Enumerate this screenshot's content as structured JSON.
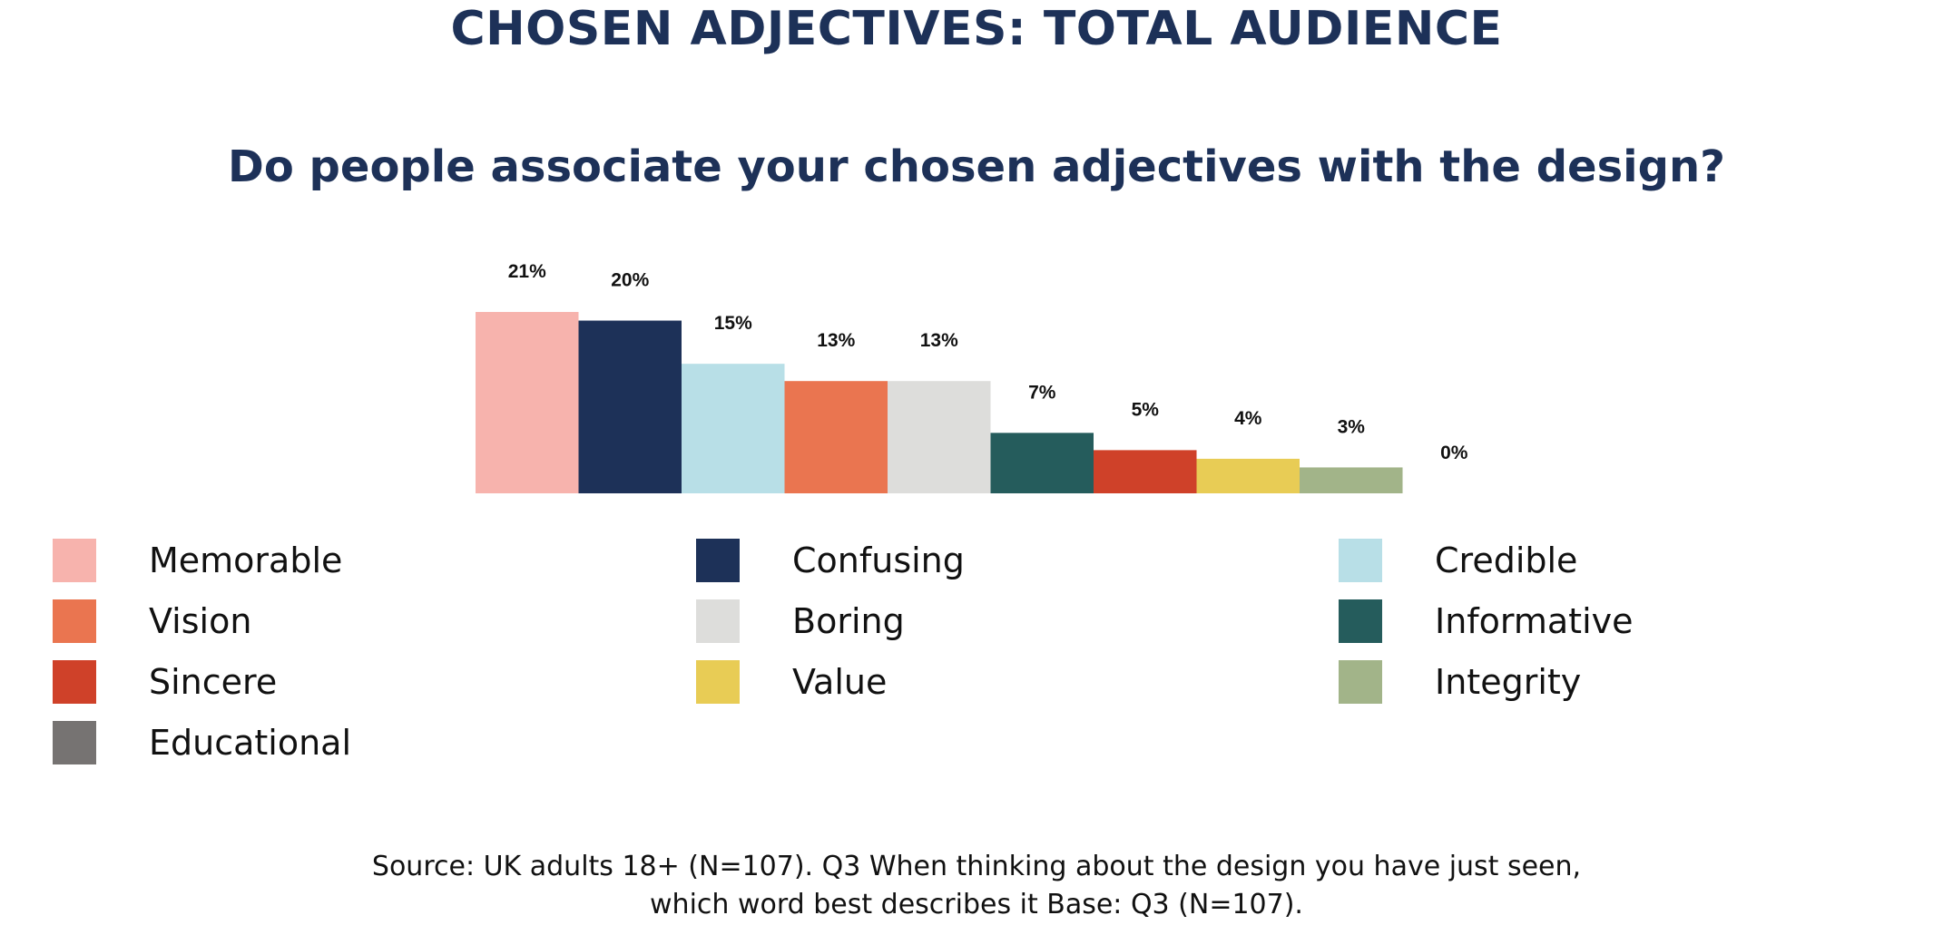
{
  "header": {
    "title": "CHOSEN ADJECTIVES: TOTAL AUDIENCE",
    "subtitle": "Do people associate your chosen adjectives with the design?"
  },
  "chart_data": {
    "type": "bar",
    "categories": [
      "Memorable",
      "Confusing",
      "Credible",
      "Vision",
      "Boring",
      "Informative",
      "Sincere",
      "Value",
      "Integrity",
      "Educational"
    ],
    "values": [
      21,
      20,
      15,
      13,
      13,
      7,
      5,
      4,
      3,
      0
    ],
    "value_labels": [
      "21%",
      "20%",
      "15%",
      "13%",
      "13%",
      "7%",
      "5%",
      "4%",
      "3%",
      "0%"
    ],
    "colors": [
      "#f7b3ad",
      "#1d3158",
      "#b8dfe7",
      "#ea7550",
      "#dddddb",
      "#255c5c",
      "#cf4129",
      "#e8cc55",
      "#a2b489",
      "#767372"
    ],
    "ylim": [
      0,
      21
    ],
    "grid": false,
    "legend_position": "bottom"
  },
  "legend": {
    "items": [
      {
        "label": "Memorable",
        "color": "#f7b3ad"
      },
      {
        "label": "Confusing",
        "color": "#1d3158"
      },
      {
        "label": "Credible",
        "color": "#b8dfe7"
      },
      {
        "label": "Vision",
        "color": "#ea7550"
      },
      {
        "label": "Boring",
        "color": "#dddddb"
      },
      {
        "label": "Informative",
        "color": "#255c5c"
      },
      {
        "label": "Sincere",
        "color": "#cf4129"
      },
      {
        "label": "Value",
        "color": "#e8cc55"
      },
      {
        "label": "Integrity",
        "color": "#a2b489"
      },
      {
        "label": "Educational",
        "color": "#767372"
      }
    ]
  },
  "footer": {
    "source_line1": "Source: UK adults 18+ (N=107). Q3 When thinking about the design you have just seen,",
    "source_line2": "which word best describes it Base: Q3 (N=107)."
  }
}
